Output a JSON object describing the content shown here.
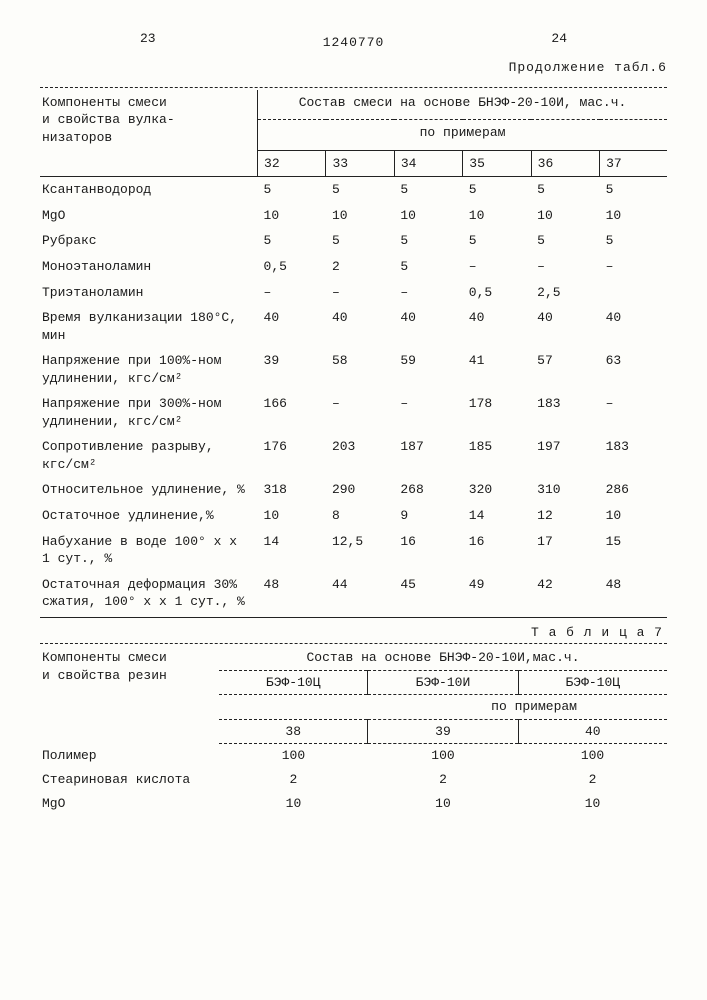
{
  "header": {
    "left_page": "23",
    "patent": "1240770",
    "right_page": "24",
    "continuation": "Продолжение табл.6"
  },
  "table6": {
    "row_label_title1": "Компоненты смеси",
    "row_label_title2": "и свойства вулка-",
    "row_label_title3": "низаторов",
    "col_group_title": "Состав смеси на основе БНЭФ-20-10И, мас.ч.",
    "subheader": "по примерам",
    "cols": [
      "32",
      "33",
      "34",
      "35",
      "36",
      "37"
    ],
    "rows": [
      {
        "l": "Ксантанводород",
        "v": [
          "5",
          "5",
          "5",
          "5",
          "5",
          "5"
        ]
      },
      {
        "l": "MgO",
        "v": [
          "10",
          "10",
          "10",
          "10",
          "10",
          "10"
        ]
      },
      {
        "l": "Рубракс",
        "v": [
          "5",
          "5",
          "5",
          "5",
          "5",
          "5"
        ]
      },
      {
        "l": "Моноэтаноламин",
        "v": [
          "0,5",
          "2",
          "5",
          "–",
          "–",
          "–"
        ]
      },
      {
        "l": "Триэтаноламин",
        "v": [
          "–",
          "–",
          "–",
          "0,5",
          "2,5",
          ""
        ]
      },
      {
        "l": "Время вулканизации 180°С, мин",
        "v": [
          "40",
          "40",
          "40",
          "40",
          "40",
          "40"
        ]
      },
      {
        "l": "Напряжение при 100%-ном удлинении, кгс/см²",
        "v": [
          "39",
          "58",
          "59",
          "41",
          "57",
          "63"
        ]
      },
      {
        "l": "Напряжение при 300%-ном удлинении, кгс/см²",
        "v": [
          "166",
          "–",
          "–",
          "178",
          "183",
          "–"
        ]
      },
      {
        "l": "Сопротивление разрыву, кгс/см²",
        "v": [
          "176",
          "203",
          "187",
          "185",
          "197",
          "183"
        ]
      },
      {
        "l": "Относительное удлине­ние, %",
        "v": [
          "318",
          "290",
          "268",
          "320",
          "310",
          "286"
        ]
      },
      {
        "l": "Остаточное удлинение,%",
        "v": [
          "10",
          "8",
          "9",
          "14",
          "12",
          "10"
        ]
      },
      {
        "l": "Набухание в воде 100° х х 1 сут., %",
        "v": [
          "14",
          "12,5",
          "16",
          "16",
          "17",
          "15"
        ]
      },
      {
        "l": "Остаточная деформация 30% сжатия, 100° х х 1 сут., %",
        "v": [
          "48",
          "44",
          "45",
          "49",
          "42",
          "48"
        ]
      }
    ]
  },
  "table7": {
    "title": "Т а б л и ц а  7",
    "row_label_title1": "Компоненты смеси",
    "row_label_title2": "и свойства резин",
    "col_group_title": "Состав на основе БНЭФ-20-10И,мас.ч.",
    "variants": [
      "БЭФ-10Ц",
      "БЭФ-10И",
      "БЭФ-10Ц"
    ],
    "subheader": "по примерам",
    "cols": [
      "38",
      "39",
      "40"
    ],
    "rows": [
      {
        "l": "Полимер",
        "v": [
          "100",
          "100",
          "100"
        ]
      },
      {
        "l": "Стеариновая кислота",
        "v": [
          "2",
          "2",
          "2"
        ]
      },
      {
        "l": "MgO",
        "v": [
          "10",
          "10",
          "10"
        ]
      }
    ]
  }
}
